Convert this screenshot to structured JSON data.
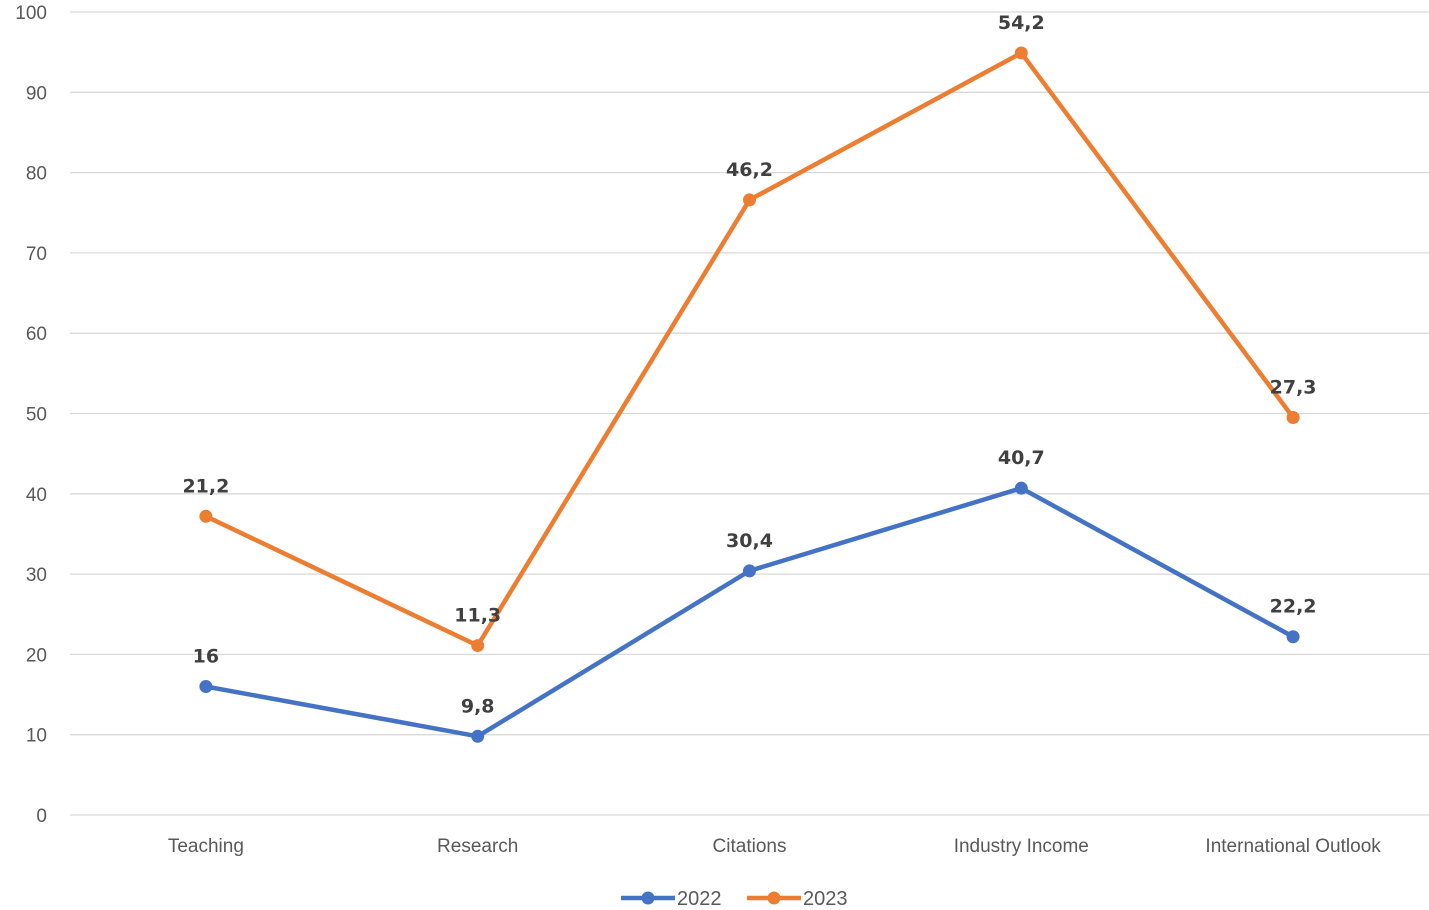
{
  "chart_data": {
    "type": "line",
    "title": "",
    "xlabel": "",
    "ylabel": "",
    "categories": [
      "Teaching",
      "Research",
      "Citations",
      "Industry Income",
      "International Outlook"
    ],
    "ylim": [
      0,
      100
    ],
    "yticks": [
      "0",
      "10",
      "20",
      "30",
      "40",
      "50",
      "60",
      "70",
      "80",
      "90",
      "100"
    ],
    "grid": true,
    "legend_position": "bottom",
    "series": [
      {
        "name": "2022",
        "color": "#4472C4",
        "values": [
          16,
          9.8,
          30.4,
          40.7,
          22.2
        ],
        "labels": [
          "16",
          "9,8",
          "30,4",
          "40,7",
          "22,2"
        ]
      },
      {
        "name": "2023",
        "color": "#ED7D31",
        "values": [
          37.2,
          21.1,
          76.6,
          94.9,
          49.5
        ],
        "labels": [
          "21,2",
          "11,3",
          "46,2",
          "54,2",
          "27,3"
        ]
      }
    ]
  }
}
